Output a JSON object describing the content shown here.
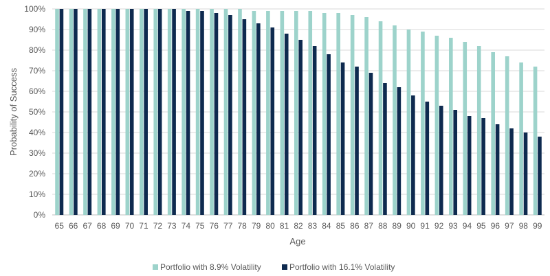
{
  "chart_data": {
    "type": "bar",
    "title": "",
    "xlabel": "Age",
    "ylabel": "Probability of Success",
    "ylim": [
      0,
      100
    ],
    "y_ticks": [
      "0%",
      "10%",
      "20%",
      "30%",
      "40%",
      "50%",
      "60%",
      "70%",
      "80%",
      "90%",
      "100%"
    ],
    "grid": true,
    "legend_position": "bottom",
    "categories": [
      "65",
      "66",
      "67",
      "68",
      "69",
      "70",
      "71",
      "72",
      "73",
      "74",
      "75",
      "76",
      "77",
      "78",
      "79",
      "80",
      "81",
      "82",
      "83",
      "84",
      "85",
      "86",
      "87",
      "88",
      "89",
      "90",
      "91",
      "92",
      "93",
      "94",
      "95",
      "96",
      "97",
      "98",
      "99"
    ],
    "series": [
      {
        "name": "Portfolio with 8.9% Volatility",
        "color": "#9dd3cb",
        "values": [
          100,
          100,
          100,
          100,
          100,
          100,
          100,
          100,
          100,
          100,
          100,
          100,
          100,
          100,
          99,
          99,
          99,
          99,
          99,
          98,
          98,
          97,
          96,
          94,
          92,
          90,
          89,
          87,
          86,
          84,
          82,
          79,
          77,
          74,
          72
        ]
      },
      {
        "name": "Portfolio with 16.1% Volatility",
        "color": "#0e2a4f",
        "values": [
          100,
          100,
          100,
          100,
          100,
          100,
          100,
          100,
          100,
          99,
          99,
          98,
          97,
          95,
          93,
          91,
          88,
          85,
          82,
          78,
          74,
          72,
          69,
          64,
          62,
          58,
          55,
          53,
          51,
          48,
          47,
          44,
          42,
          40,
          38
        ]
      }
    ]
  }
}
